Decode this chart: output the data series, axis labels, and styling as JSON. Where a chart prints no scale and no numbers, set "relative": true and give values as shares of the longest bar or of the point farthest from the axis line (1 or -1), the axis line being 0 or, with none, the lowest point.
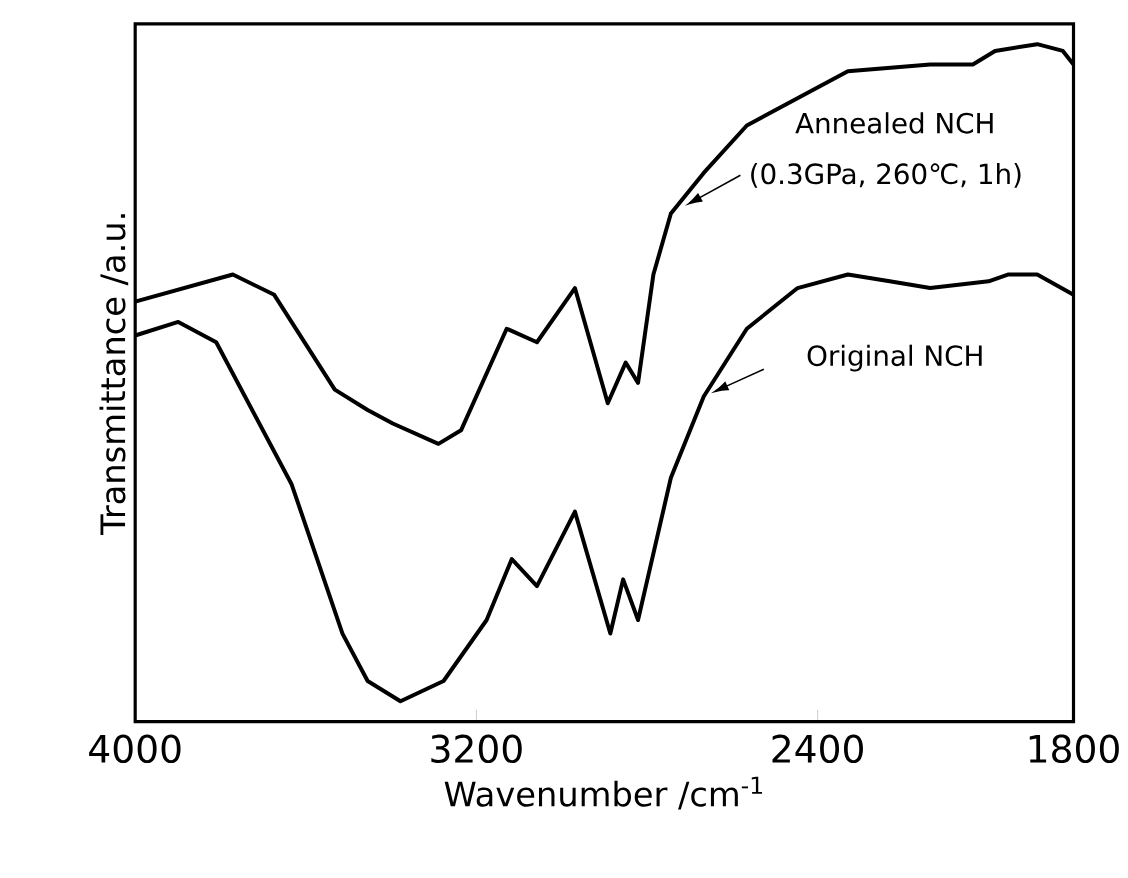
{
  "chart_data": {
    "type": "line",
    "xlabel": "Wavenumber /cm$^{-1}$",
    "ylabel": "Transmittance /a.u.",
    "relative": true,
    "xlim": [
      4000,
      1800
    ],
    "xticks": [
      4000,
      3200,
      2400,
      1800
    ],
    "annotations": [
      "(0.3GPa, 260℃, 1h)"
    ],
    "series": [
      {
        "name": "Annealed NCH",
        "color": "#000000",
        "x": [
          4000,
          3771,
          3674,
          3532,
          3455,
          3396,
          3289,
          3236,
          3129,
          3058,
          2969,
          2892,
          2850,
          2821,
          2785,
          2744,
          2667,
          2566,
          2329,
          2136,
          2036,
          1984,
          1885,
          1825,
          1800
        ],
        "values": [
          0.62,
          0.66,
          0.63,
          0.49,
          0.46,
          0.44,
          0.41,
          0.43,
          0.58,
          0.56,
          0.64,
          0.47,
          0.53,
          0.5,
          0.66,
          0.75,
          0.81,
          0.88,
          0.96,
          0.97,
          0.97,
          0.99,
          1.0,
          0.99,
          0.97
        ]
      },
      {
        "name": "Original NCH",
        "color": "#000000",
        "x": [
          4000,
          3899,
          3810,
          3633,
          3514,
          3455,
          3378,
          3277,
          3176,
          3117,
          3058,
          2969,
          2886,
          2856,
          2821,
          2744,
          2667,
          2566,
          2447,
          2329,
          2231,
          2136,
          1999,
          1954,
          1885,
          1800
        ],
        "values": [
          0.57,
          0.59,
          0.56,
          0.35,
          0.13,
          0.06,
          0.03,
          0.06,
          0.15,
          0.24,
          0.2,
          0.31,
          0.13,
          0.21,
          0.15,
          0.36,
          0.48,
          0.58,
          0.64,
          0.66,
          0.65,
          0.64,
          0.65,
          0.66,
          0.66,
          0.63
        ]
      }
    ]
  }
}
